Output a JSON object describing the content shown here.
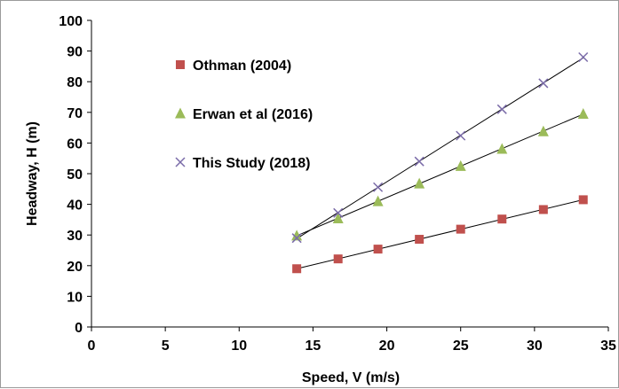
{
  "chart_data": {
    "type": "scatter",
    "title": "",
    "xlabel": "Speed, V (m/s)",
    "ylabel": "Headway, H (m)",
    "xlim": [
      0,
      35
    ],
    "ylim": [
      0,
      100
    ],
    "x_ticks": [
      "0",
      "5",
      "10",
      "15",
      "20",
      "25",
      "30",
      "35"
    ],
    "y_ticks": [
      "0",
      "10",
      "20",
      "30",
      "40",
      "50",
      "60",
      "70",
      "80",
      "90",
      "100"
    ],
    "x_tick_values": [
      0,
      5,
      10,
      15,
      20,
      25,
      30,
      35
    ],
    "y_tick_values": [
      0,
      10,
      20,
      30,
      40,
      50,
      60,
      70,
      80,
      90,
      100
    ],
    "grid": false,
    "legend_position": "top-left",
    "trendlines": true,
    "series": [
      {
        "name": "Othman (2004)",
        "marker": "square",
        "color": "#c0504d",
        "x": [
          13.9,
          16.7,
          19.4,
          22.2,
          25.0,
          27.8,
          30.6,
          33.3
        ],
        "y": [
          19.0,
          22.2,
          25.4,
          28.6,
          31.9,
          35.2,
          38.3,
          41.5
        ]
      },
      {
        "name": "Erwan et al (2016)",
        "marker": "triangle",
        "color": "#9bbb59",
        "x": [
          13.9,
          16.7,
          19.4,
          22.2,
          25.0,
          27.8,
          30.6,
          33.3
        ],
        "y": [
          29.8,
          35.4,
          41.0,
          46.8,
          52.5,
          58.1,
          63.8,
          69.5
        ]
      },
      {
        "name": "This Study (2018)",
        "marker": "x",
        "color": "#7a6ba8",
        "x": [
          13.9,
          16.7,
          19.4,
          22.2,
          25.0,
          27.8,
          30.6,
          33.3
        ],
        "y": [
          29.0,
          37.2,
          45.6,
          54.0,
          62.4,
          71.0,
          79.5,
          88.0
        ]
      }
    ]
  }
}
